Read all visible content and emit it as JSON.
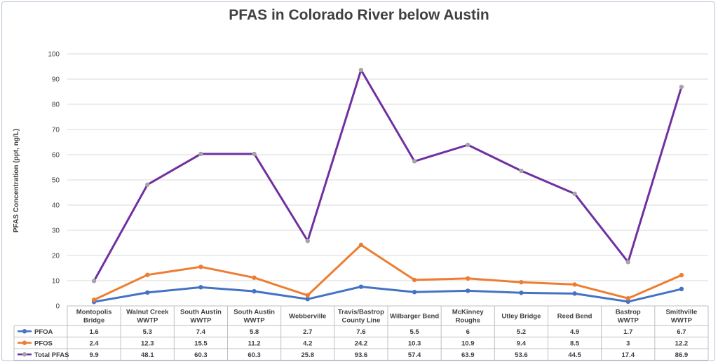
{
  "chart_data": {
    "type": "line",
    "title": "PFAS in Colorado River below Austin",
    "ylabel": "PFAS Concentration (ppt, ng/L)",
    "xlabel": "",
    "ylim": [
      0,
      100
    ],
    "yticks": [
      0,
      10,
      20,
      30,
      40,
      50,
      60,
      70,
      80,
      90,
      100
    ],
    "grid": true,
    "legend": "data-table",
    "categories": [
      [
        "Montopolis",
        "Bridge"
      ],
      [
        "Walnut Creek",
        "WWTP"
      ],
      [
        "South Austin",
        "WWTP"
      ],
      [
        "South Austin",
        "WWTP"
      ],
      [
        "Webberville"
      ],
      [
        "Travis/Bastrop",
        "County Line"
      ],
      [
        "Wilbarger Bend"
      ],
      [
        "McKinney",
        "Roughs"
      ],
      [
        "Utley Bridge"
      ],
      [
        "Reed Bend"
      ],
      [
        "Bastrop",
        "WWTP"
      ],
      [
        "Smithville",
        "WWTP"
      ]
    ],
    "series": [
      {
        "name": "PFOA",
        "color": "#4472c4",
        "marker": "#4472c4",
        "values": [
          1.6,
          5.3,
          7.4,
          5.8,
          2.7,
          7.6,
          5.5,
          6,
          5.2,
          4.9,
          1.7,
          6.7
        ]
      },
      {
        "name": "PFOS",
        "color": "#ed7d31",
        "marker": "#ed7d31",
        "values": [
          2.4,
          12.3,
          15.5,
          11.2,
          4.2,
          24.2,
          10.3,
          10.9,
          9.4,
          8.5,
          3,
          12.2
        ]
      },
      {
        "name": "Total PFAS",
        "color": "#7030a0",
        "marker": "#a5a5a5",
        "values": [
          9.9,
          48.1,
          60.3,
          60.3,
          25.8,
          93.6,
          57.4,
          63.9,
          53.6,
          44.5,
          17.4,
          86.9
        ]
      }
    ]
  }
}
